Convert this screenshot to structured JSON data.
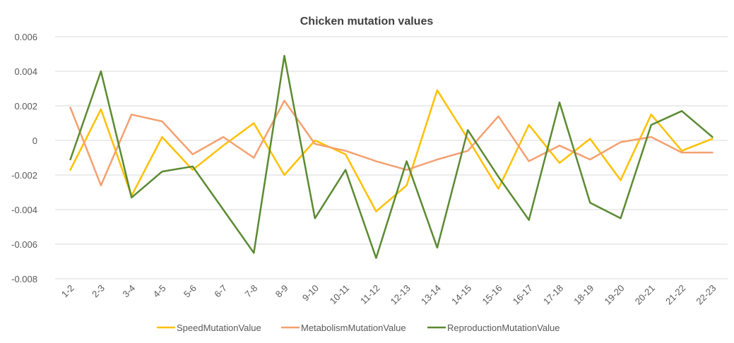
{
  "chart_data": {
    "type": "line",
    "title": "Chicken mutation values",
    "xlabel": "",
    "ylabel": "",
    "categories": [
      "1-2",
      "2-3",
      "3-4",
      "4-5",
      "5-6",
      "6-7",
      "7-8",
      "8-9",
      "9-10",
      "10-11",
      "11-12",
      "12-13",
      "13-14",
      "14-15",
      "15-16",
      "16-17",
      "17-18",
      "18-19",
      "19-20",
      "20-21",
      "21-22",
      "22-23"
    ],
    "ylim": [
      -0.008,
      0.006
    ],
    "yticks": [
      0.006,
      0.004,
      0.002,
      0,
      -0.002,
      -0.004,
      -0.006,
      -0.008
    ],
    "ytick_labels": [
      "0.006",
      "0.004",
      "0.002",
      "0",
      "-0.002",
      "-0.004",
      "-0.006",
      "-0.008"
    ],
    "grid": true,
    "legend_position": "bottom",
    "series": [
      {
        "name": "SpeedMutationValue",
        "color": "#FFC000",
        "values": [
          -0.0017,
          0.0018,
          -0.0032,
          0.0002,
          -0.0017,
          -0.0003,
          0.001,
          -0.002,
          0.0,
          -0.0008,
          -0.0041,
          -0.0026,
          0.0029,
          0.0001,
          -0.0028,
          0.0009,
          -0.0013,
          0.0001,
          -0.0023,
          0.0015,
          -0.0006,
          0.0001
        ]
      },
      {
        "name": "MetabolismMutationValue",
        "color": "#F4A070",
        "values": [
          0.0019,
          -0.0026,
          0.0015,
          0.0011,
          -0.0008,
          0.0002,
          -0.001,
          0.0023,
          -0.0002,
          -0.0006,
          -0.0012,
          -0.0017,
          -0.0011,
          -0.0006,
          0.0014,
          -0.0012,
          -0.0003,
          -0.0011,
          -0.0001,
          0.0002,
          -0.0007,
          -0.0007
        ]
      },
      {
        "name": "ReproductionMutationValue",
        "color": "#5A8A32",
        "values": [
          -0.0011,
          0.004,
          -0.0033,
          -0.0018,
          -0.0015,
          -0.004,
          -0.0065,
          0.0049,
          -0.0045,
          -0.0017,
          -0.0068,
          -0.0012,
          -0.0062,
          0.0006,
          -0.0021,
          -0.0046,
          0.0022,
          -0.0036,
          -0.0045,
          0.0009,
          0.0017,
          0.0002
        ]
      }
    ]
  }
}
